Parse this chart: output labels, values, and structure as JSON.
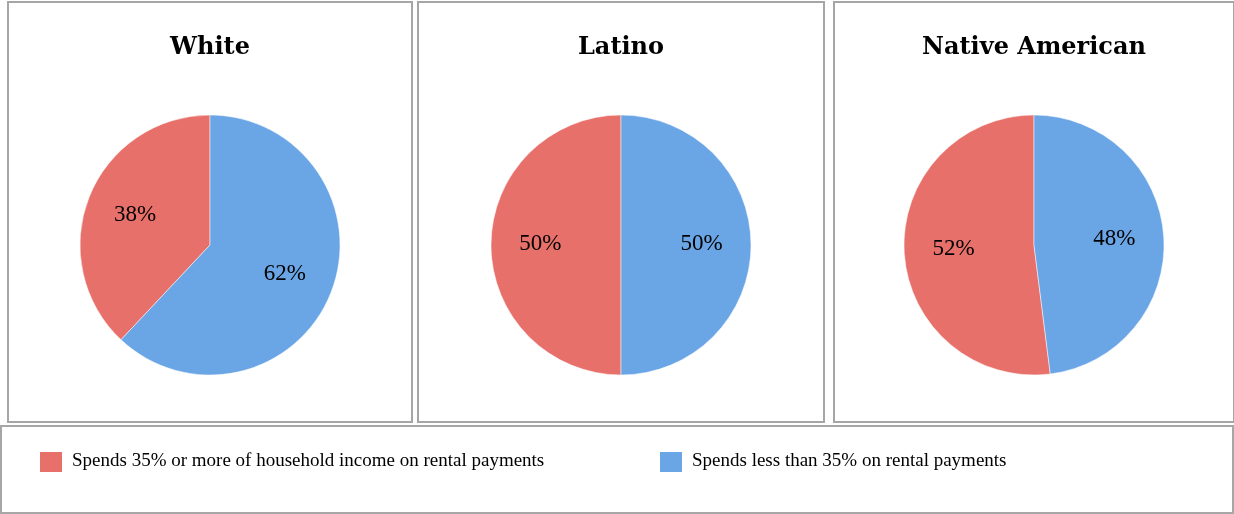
{
  "chart_data": [
    {
      "type": "pie",
      "title": "White",
      "categories": [
        "Spends 35% or more of household income on rental payments",
        "Spends less than 35% on rental payments"
      ],
      "values": [
        38,
        62
      ],
      "value_labels": [
        "38%",
        "62%"
      ],
      "colors": [
        "#e8706a",
        "#6aa5e6"
      ],
      "legend": "bottom"
    },
    {
      "type": "pie",
      "title": "Latino",
      "categories": [
        null,
        null
      ],
      "values": [
        50,
        50
      ],
      "value_labels": [
        "50%",
        "50%"
      ],
      "colors": [
        "#e8706a",
        "#6aa5e6"
      ]
    },
    {
      "type": "pie",
      "title": "Native American",
      "categories": [
        null,
        null
      ],
      "values": [
        52,
        48
      ],
      "value_labels": [
        "52%",
        "48%"
      ],
      "colors": [
        "#e8706a",
        "#6aa5e6"
      ]
    }
  ]
}
